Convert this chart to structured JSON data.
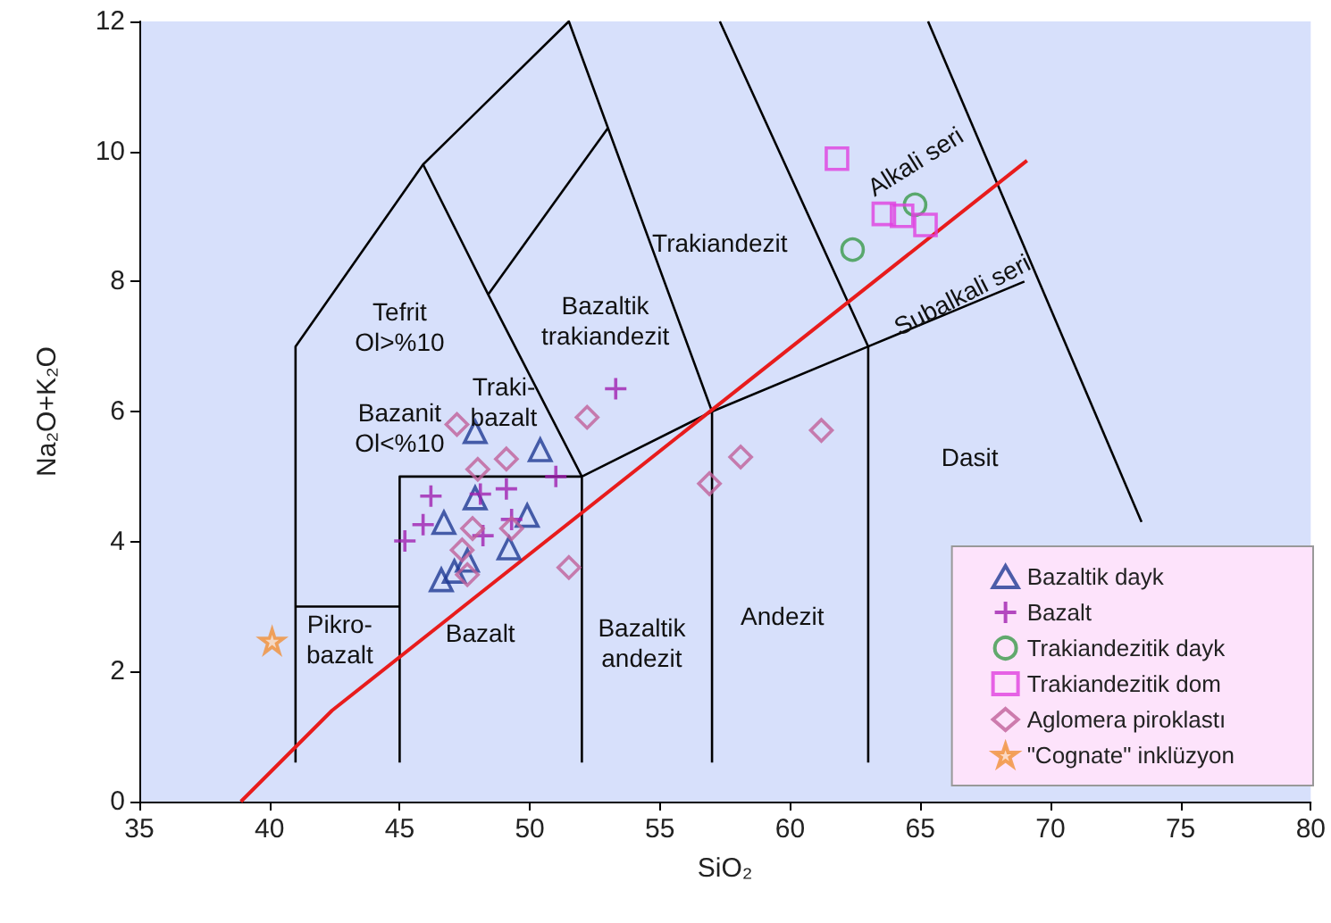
{
  "chart_data": {
    "type": "scatter",
    "xlabel": "SiO₂",
    "ylabel": "Na₂O+K₂O",
    "xlim": [
      35,
      80
    ],
    "xticks": [
      35,
      40,
      45,
      50,
      55,
      60,
      65,
      70,
      75,
      80
    ],
    "ylim": [
      0,
      12
    ],
    "yticks": [
      0,
      2,
      4,
      6,
      8,
      10,
      12
    ],
    "grid": false,
    "legend": "bottom right",
    "series": [
      {
        "type": "line",
        "color": "#000000",
        "x": [
          41,
          41,
          45.9,
          51.5,
          57,
          57
        ],
        "values": [
          0.6,
          7,
          9.8,
          12,
          6,
          0.6
        ]
      },
      {
        "type": "line",
        "color": "#000000",
        "x": [
          45.9,
          48.4,
          52
        ],
        "values": [
          9.8,
          7.8,
          5
        ]
      },
      {
        "type": "line",
        "color": "#000000",
        "x": [
          48.4,
          53
        ],
        "values": [
          7.8,
          10.36
        ]
      },
      {
        "type": "line",
        "color": "#000000",
        "x": [
          41,
          45
        ],
        "values": [
          3,
          3
        ]
      },
      {
        "type": "line",
        "color": "#000000",
        "x": [
          45,
          45,
          52
        ],
        "values": [
          0.6,
          5,
          5
        ]
      },
      {
        "type": "line",
        "color": "#000000",
        "x": [
          52,
          52,
          57,
          63,
          69
        ],
        "values": [
          0.6,
          5,
          6,
          7,
          8
        ]
      },
      {
        "type": "line",
        "color": "#000000",
        "x": [
          57.3,
          63,
          63
        ],
        "values": [
          12,
          7,
          0.6
        ]
      },
      {
        "type": "line",
        "color": "#000000",
        "x": [
          65.3,
          73.5
        ],
        "values": [
          12,
          4.3
        ]
      },
      {
        "type": "line",
        "color": "#e81c1c",
        "x": [
          38.9,
          42.4,
          69.1
        ],
        "values": [
          0,
          1.4,
          9.86
        ]
      },
      {
        "name": "Bazaltik dayk",
        "marker": "triangle",
        "color": "#1f3a93",
        "x": [
          47.9,
          50.4,
          47.9,
          46.7,
          49.9,
          49.2,
          47.6,
          47.1,
          46.6
        ],
        "values": [
          5.69,
          5.41,
          4.67,
          4.29,
          4.4,
          3.9,
          3.71,
          3.54,
          3.41
        ]
      },
      {
        "name": "Bazalt",
        "marker": "cross",
        "color": "#a020b0",
        "x": [
          51,
          46.2,
          48.1,
          49.1,
          45.9,
          45.2,
          48.2,
          49.3,
          53.3
        ],
        "values": [
          5,
          4.7,
          4.73,
          4.81,
          4.26,
          4.01,
          4.09,
          4.34,
          6.35
        ]
      },
      {
        "name": "Trakiandezitik dayk",
        "marker": "circle",
        "color": "#3a9a4a",
        "x": [
          64.8,
          62.4
        ],
        "values": [
          9.18,
          8.49
        ]
      },
      {
        "name": "Trakiandezitik dom",
        "marker": "square",
        "color": "#e040e0",
        "x": [
          61.8,
          63.6,
          64.3,
          65.2
        ],
        "values": [
          9.89,
          9.04,
          9.01,
          8.87
        ]
      },
      {
        "name": "Aglomera piroklastı",
        "marker": "diamond",
        "color": "#c0609a",
        "x": [
          47.2,
          52.2,
          49.1,
          48,
          47.8,
          49.3,
          47.4,
          47.6,
          51.5,
          58.1,
          56.9,
          61.2
        ],
        "values": [
          5.8,
          5.91,
          5.27,
          5.11,
          4.2,
          4.2,
          3.87,
          3.49,
          3.6,
          5.3,
          4.89,
          5.71
        ]
      },
      {
        "name": "\"Cognate\" inklüzyon",
        "marker": "star",
        "color": "#f0903a",
        "x": [
          40.1
        ],
        "values": [
          2.47
        ]
      }
    ],
    "annotations": [
      "Tefrit\nOl>%10",
      "Bazanit\nOl<%10",
      "Traki-\nbazalt",
      "Bazaltik\ntrakiandezit",
      "Trakiandezit",
      "Alkali seri",
      "Subalkali seri",
      "Dasit",
      "Andezit",
      "Bazaltik\nandezit",
      "Bazalt",
      "Pikro-\nbazalt"
    ]
  }
}
